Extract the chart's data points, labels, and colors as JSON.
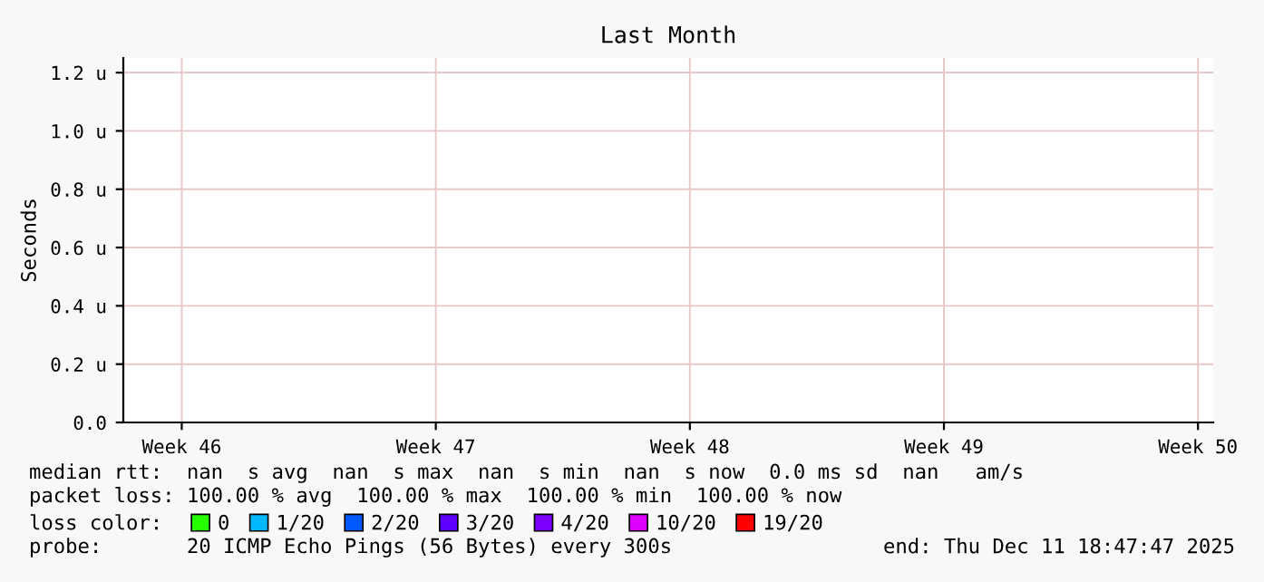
{
  "chart_data": {
    "type": "line",
    "title": "Last Month",
    "ylabel": "Seconds",
    "legend_title": "loss color:",
    "categories": [
      "Week 46",
      "Week 47",
      "Week 48",
      "Week 49",
      "Week 50"
    ],
    "ylim": [
      0,
      1.25
    ],
    "yticks": [
      {
        "value": 0,
        "label": "0.0"
      },
      {
        "value": 0.2,
        "label": "0.2 u"
      },
      {
        "value": 0.4,
        "label": "0.4 u"
      },
      {
        "value": 0.6,
        "label": "0.6 u"
      },
      {
        "value": 0.8,
        "label": "0.8 u"
      },
      {
        "value": 1.0,
        "label": "1.0 u"
      },
      {
        "value": 1.2,
        "label": "1.2 u"
      }
    ],
    "series": [
      {
        "name": "0",
        "color": "#26ff00",
        "values": [
          null,
          null,
          null,
          null,
          null
        ]
      },
      {
        "name": "1/20",
        "color": "#00b8ff",
        "values": [
          null,
          null,
          null,
          null,
          null
        ]
      },
      {
        "name": "2/20",
        "color": "#0059ff",
        "values": [
          null,
          null,
          null,
          null,
          null
        ]
      },
      {
        "name": "3/20",
        "color": "#5e00ff",
        "values": [
          null,
          null,
          null,
          null,
          null
        ]
      },
      {
        "name": "4/20",
        "color": "#7e00ff",
        "values": [
          null,
          null,
          null,
          null,
          null
        ]
      },
      {
        "name": "10/20",
        "color": "#dd00ff",
        "values": [
          null,
          null,
          null,
          null,
          null
        ]
      },
      {
        "name": "19/20",
        "color": "#ff0000",
        "values": [
          null,
          null,
          null,
          null,
          null
        ]
      }
    ],
    "grid": true,
    "legend": "bottom",
    "annotations": [
      "median rtt:  nan  s avg  nan  s max  nan  s min  nan  s now  0.0 ms sd  nan   am/s",
      "packet loss: 100.00 % avg  100.00 % max  100.00 % min  100.00 % now",
      "probe:       20 ICMP Echo Pings (56 Bytes) every 300s",
      "end: Thu Dec 11 18:47:47 2025"
    ]
  }
}
